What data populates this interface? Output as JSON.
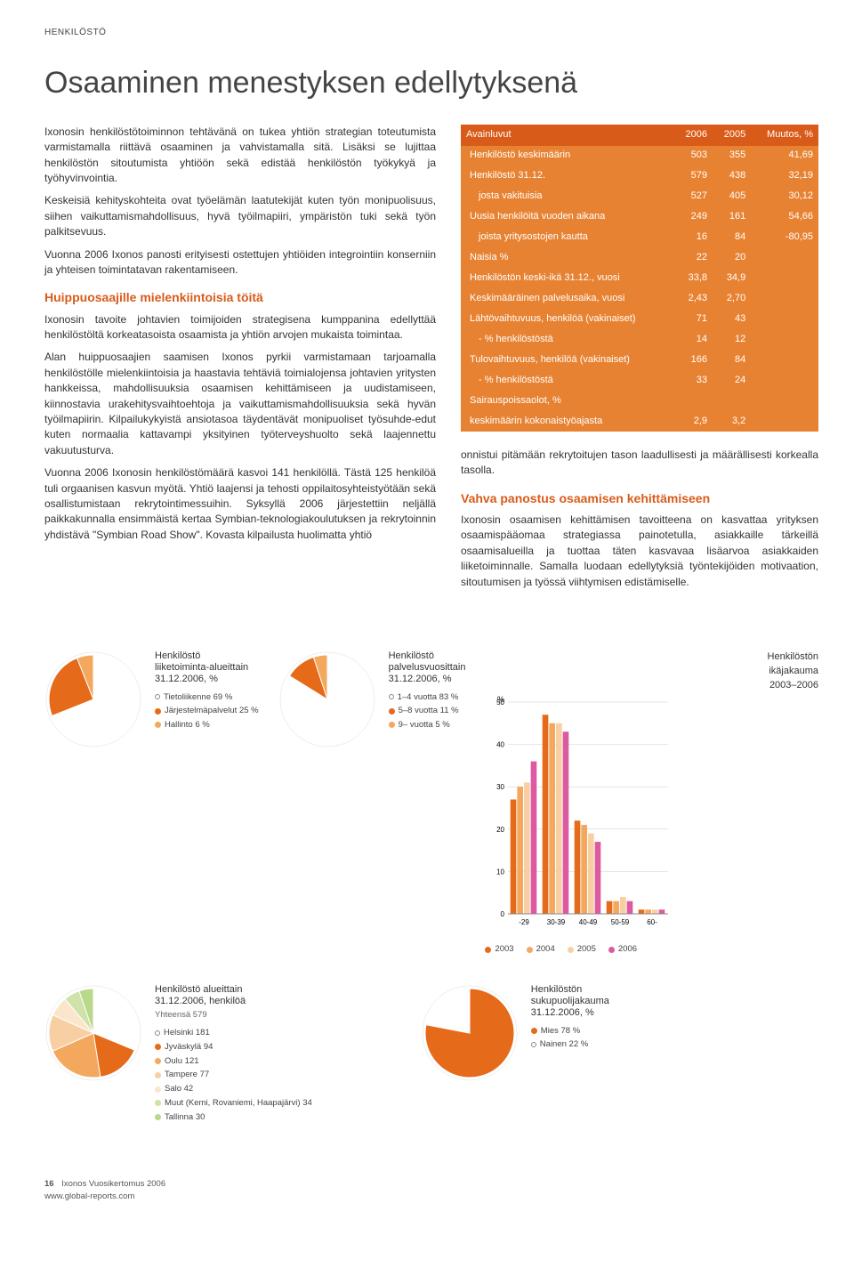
{
  "section_label": "HENKILÖSTÖ",
  "title": "Osaaminen menestyksen edellytyksenä",
  "left_column": {
    "p1": "Ixonosin henkilöstötoiminnon tehtävänä on tukea yhtiön strategian toteutumista varmistamalla riittävä osaaminen ja vahvistamalla sitä. Lisäksi se lujittaa henkilöstön sitoutumista yhtiöön sekä edistää henkilöstön työkykyä ja työhyvinvointia.",
    "p2": "Keskeisiä kehityskohteita ovat työelämän laatutekijät kuten työn monipuolisuus, siihen vaikuttamismahdollisuus, hyvä työilmapiiri, ympäristön tuki sekä työn palkitsevuus.",
    "p3": "Vuonna 2006 Ixonos panosti erityisesti ostettujen yhtiöiden integrointiin konserniin ja yhteisen toimintatavan rakentamiseen.",
    "h_left": "Huippuosaajille mielenkiintoisia töitä",
    "p4": "Ixonosin tavoite johtavien toimijoiden strategisena kumppanina edellyttää henkilöstöltä korkeatasoista osaamista ja yhtiön arvojen mukaista toimintaa.",
    "p5": "Alan huippuosaajien saamisen Ixonos pyrkii varmistamaan tarjoamalla henkilöstölle mielenkiintoisia ja haastavia tehtäviä toimialojensa johtavien yritysten hankkeissa, mahdollisuuksia osaamisen kehittämiseen ja uudistamiseen, kiinnostavia urakehitysvaihtoehtoja ja vaikuttamismahdollisuuksia sekä hyvän työilmapiirin. Kilpailukykyistä ansiotasoa täydentävät monipuoliset työsuhde-edut kuten normaalia kattavampi yksityinen työterveyshuolto sekä laajennettu vakuutusturva.",
    "p6": "Vuonna 2006 Ixonosin henkilöstömäärä kasvoi 141 henkilöllä. Tästä 125 henkilöä tuli orgaanisen kasvun myötä. Yhtiö laajensi ja tehosti oppilaitosyhteistyötään sekä osallistumistaan rekrytointimessuihin. Syksyllä 2006 järjestettiin neljällä paikkakunnalla ensimmäistä kertaa Symbian-teknologiakoulutuksen ja rekrytoinnin yhdistävä \"Symbian Road Show\". Kovasta kilpailusta huolimatta yhtiö"
  },
  "right_column": {
    "p_right1": "onnistui pitämään rekrytoitujen tason laadullisesti ja määrällisesti korkealla tasolla.",
    "h_right": "Vahva panostus osaamisen kehittämiseen",
    "p_right2": "Ixonosin osaamisen kehittämisen tavoitteena on kasvattaa yrityksen osaamispääomaa strategiassa painotetulla, asiakkaille tärkeillä osaamisalueilla ja tuottaa täten kasvavaa lisäarvoa asiakkaiden liiketoiminnalle. Samalla luodaan edellytyksiä työntekijöiden motivaation, sitoutumisen ja työssä viihtymisen edistämiselle."
  },
  "table": {
    "headers": [
      "Avainluvut",
      "2006",
      "2005",
      "Muutos, %"
    ],
    "rows": [
      {
        "label": "Henkilöstö keskimäärin",
        "c1": "503",
        "c2": "355",
        "c3": "41,69",
        "indent": false
      },
      {
        "label": "Henkilöstö 31.12.",
        "c1": "579",
        "c2": "438",
        "c3": "32,19",
        "indent": false
      },
      {
        "label": "josta vakituisia",
        "c1": "527",
        "c2": "405",
        "c3": "30,12",
        "indent": true
      },
      {
        "label": "Uusia henkilöitä vuoden aikana",
        "c1": "249",
        "c2": "161",
        "c3": "54,66",
        "indent": false
      },
      {
        "label": "joista yritysostojen kautta",
        "c1": "16",
        "c2": "84",
        "c3": "-80,95",
        "indent": true
      },
      {
        "label": "Naisia %",
        "c1": "22",
        "c2": "20",
        "c3": "",
        "indent": false
      },
      {
        "label": "Henkilöstön keski-ikä 31.12., vuosi",
        "c1": "33,8",
        "c2": "34,9",
        "c3": "",
        "indent": false
      },
      {
        "label": "Keskimääräinen palvelusaika, vuosi",
        "c1": "2,43",
        "c2": "2,70",
        "c3": "",
        "indent": false
      },
      {
        "label": "Lähtövaihtuvuus, henkilöä (vakinaiset)",
        "c1": "71",
        "c2": "43",
        "c3": "",
        "indent": false
      },
      {
        "label": "- % henkilöstöstä",
        "c1": "14",
        "c2": "12",
        "c3": "",
        "indent": true
      },
      {
        "label": "Tulovaihtuvuus, henkilöä (vakinaiset)",
        "c1": "166",
        "c2": "84",
        "c3": "",
        "indent": false
      },
      {
        "label": "- % henkilöstöstä",
        "c1": "33",
        "c2": "24",
        "c3": "",
        "indent": true
      },
      {
        "label": "Sairauspoissaolot, %",
        "c1": "",
        "c2": "",
        "c3": "",
        "indent": false
      },
      {
        "label": "keskimäärin kokonaistyöajasta",
        "c1": "2,9",
        "c2": "3,2",
        "c3": "",
        "indent": false
      }
    ],
    "header_bg": "#d95b1a",
    "body_bg": "#e78232",
    "text_color": "#ffffff"
  },
  "pie1": {
    "title": "Henkilöstö\nliiketoiminta-alueittain\n31.12.2006, %",
    "slices": [
      {
        "label": "Tietoliikenne 69 %",
        "value": 69,
        "color": "#ffffff",
        "ring": true
      },
      {
        "label": "Järjestelmäpalvelut 25 %",
        "value": 25,
        "color": "#e56a1a",
        "ring": false
      },
      {
        "label": "Hallinto 6 %",
        "value": 6,
        "color": "#f4a85e",
        "ring": false
      }
    ]
  },
  "pie2": {
    "title": "Henkilöstö\npalvelusvuosittain\n31.12.2006, %",
    "slices": [
      {
        "label": "1–4 vuotta 83 %",
        "value": 83,
        "color": "#ffffff",
        "ring": true
      },
      {
        "label": "5–8 vuotta 11 %",
        "value": 11,
        "color": "#e56a1a",
        "ring": false
      },
      {
        "label": "9– vuotta 5 %",
        "value": 5,
        "color": "#f4a85e",
        "ring": false
      }
    ]
  },
  "pie3": {
    "title": "Henkilöstö alueittain\n31.12.2006, henkilöä",
    "subtitle": "Yhteensä 579",
    "slices": [
      {
        "label": "Helsinki 181",
        "value": 181,
        "color": "#ffffff",
        "ring": true
      },
      {
        "label": "Jyväskylä 94",
        "value": 94,
        "color": "#e56a1a",
        "ring": false
      },
      {
        "label": "Oulu 121",
        "value": 121,
        "color": "#f4a85e",
        "ring": false
      },
      {
        "label": "Tampere 77",
        "value": 77,
        "color": "#f8cfa3",
        "ring": false
      },
      {
        "label": "Salo 42",
        "value": 42,
        "color": "#fbe6cb",
        "ring": false
      },
      {
        "label": "Muut (Kemi, Rovaniemi, Haapajärvi) 34",
        "value": 34,
        "color": "#d0e2a8",
        "ring": false
      },
      {
        "label": "Tallinna 30",
        "value": 30,
        "color": "#b8d88a",
        "ring": false
      }
    ]
  },
  "pie4": {
    "title": "Henkilöstön\nsukupuolijakauma\n31.12.2006, %",
    "slices": [
      {
        "label": "Mies 78 %",
        "value": 78,
        "color": "#e56a1a",
        "ring": false
      },
      {
        "label": "Nainen 22 %",
        "value": 22,
        "color": "#ffffff",
        "ring": true
      }
    ]
  },
  "bar_chart": {
    "title": "Henkilöstön\nikäjakauma\n2003–2006",
    "y_label": "%",
    "y_max": 50,
    "y_step": 10,
    "categories": [
      "-29",
      "30-39",
      "40-49",
      "50-59",
      "60-"
    ],
    "series": [
      {
        "name": "2003",
        "color": "#e56a1a",
        "values": [
          27,
          47,
          22,
          3,
          1
        ]
      },
      {
        "name": "2004",
        "color": "#f4a85e",
        "values": [
          30,
          45,
          21,
          3,
          1
        ]
      },
      {
        "name": "2005",
        "color": "#f8cfa3",
        "values": [
          31,
          45,
          19,
          4,
          1
        ]
      },
      {
        "name": "2006",
        "color": "#de5aa0",
        "values": [
          36,
          43,
          17,
          3,
          1
        ]
      }
    ]
  },
  "footer": {
    "page": "16",
    "text": "Ixonos Vuosikertomus 2006",
    "url": "www.global-reports.com"
  }
}
